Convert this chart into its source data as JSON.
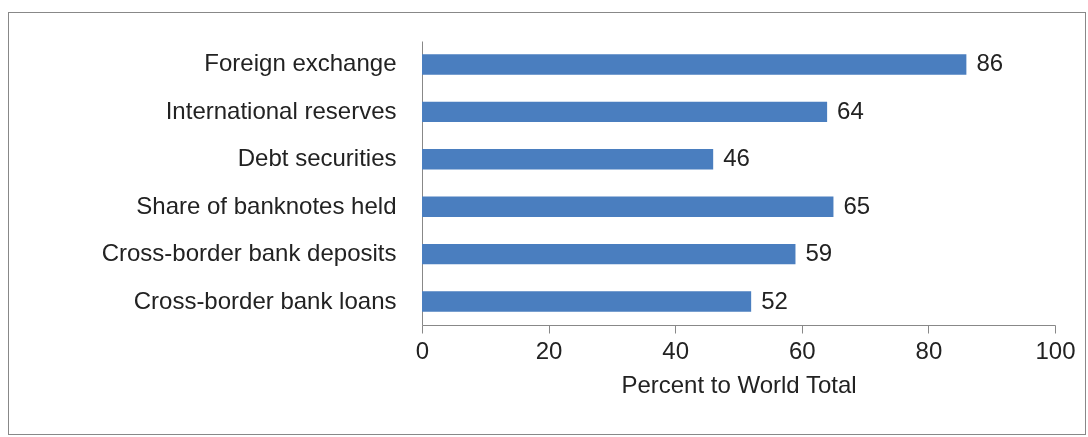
{
  "chart_data": {
    "type": "bar",
    "orientation": "horizontal",
    "xlabel": "Percent to World Total",
    "categories": [
      "Foreign exchange",
      "International reserves",
      "Debt securities",
      "Share of banknotes held",
      "Cross-border bank deposits",
      "Cross-border bank loans"
    ],
    "values": [
      86,
      64,
      46,
      65,
      59,
      52
    ],
    "color": "#4a7ebf",
    "xlim": [
      0,
      100
    ],
    "xticks": [
      0,
      20,
      40,
      60,
      80,
      100
    ],
    "grid": false,
    "data_labels": true
  }
}
